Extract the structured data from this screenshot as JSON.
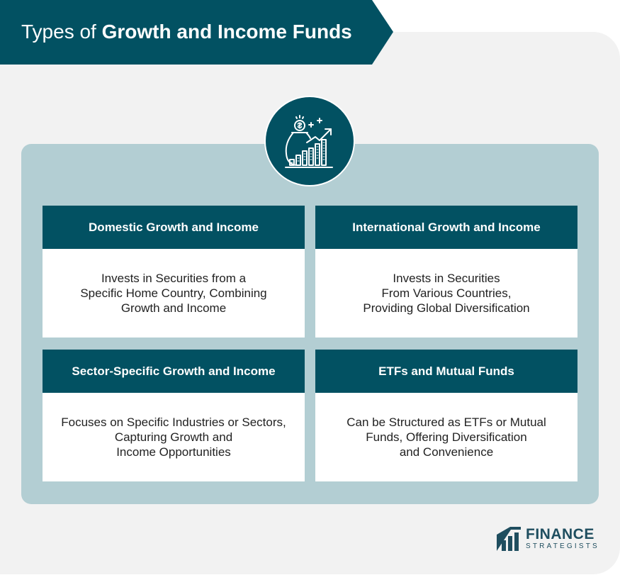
{
  "header": {
    "title_regular": "Types of ",
    "title_bold": "Growth and Income Funds"
  },
  "icon": {
    "name": "money-bag-growth-chart-icon"
  },
  "cards": [
    {
      "title": "Domestic Growth and Income",
      "lines": [
        "Invests in Securities from a",
        "Specific Home Country, Combining",
        "Growth and Income"
      ]
    },
    {
      "title": "International Growth and Income",
      "lines": [
        "Invests in Securities",
        "From Various Countries,",
        "Providing Global Diversification"
      ]
    },
    {
      "title": "Sector-Specific Growth and Income",
      "lines": [
        "Focuses on Specific Industries or Sectors,",
        "Capturing Growth and",
        "Income Opportunities"
      ]
    },
    {
      "title": "ETFs and Mutual Funds",
      "lines": [
        "Can be Structured as ETFs or Mutual",
        "Funds, Offering Diversification",
        "and Convenience"
      ]
    }
  ],
  "logo": {
    "word": "FINANCE",
    "sub": "STRATEGISTS"
  },
  "colors": {
    "primary": "#025162",
    "panel": "#b3ced3",
    "background": "#f2f2f2"
  }
}
